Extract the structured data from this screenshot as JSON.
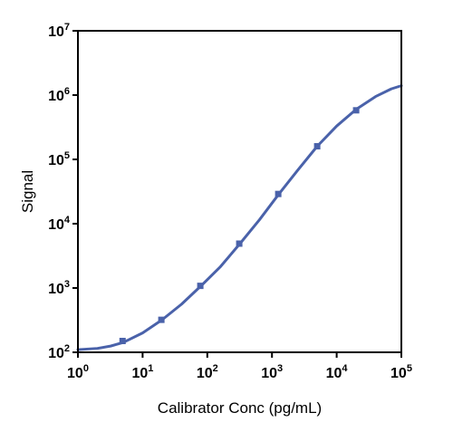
{
  "chart_data": {
    "type": "scatter",
    "xlabel": "Calibrator Conc (pg/mL)",
    "ylabel": "Signal",
    "x_scale": "log",
    "y_scale": "log",
    "xlim": [
      1,
      100000
    ],
    "ylim": [
      100,
      10000000
    ],
    "x_ticks": [
      {
        "value": 1,
        "base": "10",
        "exp": "0"
      },
      {
        "value": 10,
        "base": "10",
        "exp": "1"
      },
      {
        "value": 100,
        "base": "10",
        "exp": "2"
      },
      {
        "value": 1000,
        "base": "10",
        "exp": "3"
      },
      {
        "value": 10000,
        "base": "10",
        "exp": "4"
      },
      {
        "value": 100000,
        "base": "10",
        "exp": "5"
      }
    ],
    "y_ticks": [
      {
        "value": 100,
        "base": "10",
        "exp": "2"
      },
      {
        "value": 1000,
        "base": "10",
        "exp": "3"
      },
      {
        "value": 10000,
        "base": "10",
        "exp": "4"
      },
      {
        "value": 100000,
        "base": "10",
        "exp": "5"
      },
      {
        "value": 1000000,
        "base": "10",
        "exp": "6"
      },
      {
        "value": 10000000,
        "base": "10",
        "exp": "7"
      }
    ],
    "grid": false,
    "series": [
      {
        "points": [
          {
            "x": 4.9,
            "y": 150
          },
          {
            "x": 19.5,
            "y": 320
          },
          {
            "x": 78,
            "y": 1080
          },
          {
            "x": 312,
            "y": 4900
          },
          {
            "x": 1250,
            "y": 29000
          },
          {
            "x": 5000,
            "y": 160000
          },
          {
            "x": 20000,
            "y": 580000
          }
        ],
        "marker": "square",
        "color": "#4a62aa"
      }
    ],
    "fit_curve": {
      "points": [
        {
          "x": 1,
          "y": 110
        },
        {
          "x": 2,
          "y": 115
        },
        {
          "x": 3.2,
          "y": 125
        },
        {
          "x": 5,
          "y": 142
        },
        {
          "x": 10,
          "y": 200
        },
        {
          "x": 20,
          "y": 320
        },
        {
          "x": 40,
          "y": 560
        },
        {
          "x": 80,
          "y": 1080
        },
        {
          "x": 160,
          "y": 2150
        },
        {
          "x": 320,
          "y": 4900
        },
        {
          "x": 640,
          "y": 11500
        },
        {
          "x": 1280,
          "y": 29000
        },
        {
          "x": 2500,
          "y": 68000
        },
        {
          "x": 5000,
          "y": 160000
        },
        {
          "x": 10000,
          "y": 330000
        },
        {
          "x": 20000,
          "y": 600000
        },
        {
          "x": 40000,
          "y": 950000
        },
        {
          "x": 70000,
          "y": 1250000
        },
        {
          "x": 100000,
          "y": 1400000
        }
      ],
      "color": "#4a62aa"
    }
  }
}
